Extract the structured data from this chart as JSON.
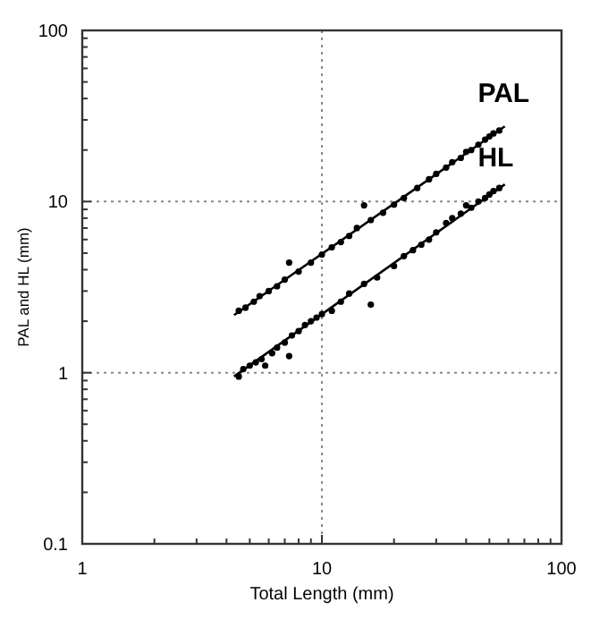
{
  "chart_data": {
    "type": "scatter",
    "xlabel": "Total Length (mm)",
    "ylabel": "PAL and HL (mm)",
    "log": "xy",
    "grid": true,
    "marker": "circle",
    "xlim": [
      1,
      100
    ],
    "ylim": [
      0.1,
      100
    ],
    "xticks": [
      1,
      {
        "value": 2,
        "label": null
      },
      {
        "value": 3,
        "label": null
      },
      {
        "value": 4,
        "label": null
      },
      {
        "value": 5,
        "label": null
      },
      {
        "value": 6,
        "label": null
      },
      {
        "value": 7,
        "label": null
      },
      {
        "value": 8,
        "label": null
      },
      {
        "value": 9,
        "label": null
      },
      10,
      {
        "value": 20,
        "label": null
      },
      {
        "value": 30,
        "label": null
      },
      {
        "value": 40,
        "label": null
      },
      {
        "value": 50,
        "label": null
      },
      {
        "value": 60,
        "label": null
      },
      {
        "value": 70,
        "label": null
      },
      {
        "value": 80,
        "label": null
      },
      {
        "value": 90,
        "label": null
      },
      100
    ],
    "yticks": [
      0.1,
      {
        "value": 0.2,
        "label": null
      },
      {
        "value": 0.3,
        "label": null
      },
      {
        "value": 0.4,
        "label": null
      },
      {
        "value": 0.5,
        "label": null
      },
      {
        "value": 0.6,
        "label": null
      },
      {
        "value": 0.7,
        "label": null
      },
      {
        "value": 0.8,
        "label": null
      },
      {
        "value": 0.9,
        "label": null
      },
      1,
      {
        "value": 2,
        "label": null
      },
      {
        "value": 3,
        "label": null
      },
      {
        "value": 4,
        "label": null
      },
      {
        "value": 5,
        "label": null
      },
      {
        "value": 6,
        "label": null
      },
      {
        "value": 7,
        "label": null
      },
      {
        "value": 8,
        "label": null
      },
      {
        "value": 9,
        "label": null
      },
      10,
      {
        "value": 20,
        "label": null
      },
      {
        "value": 30,
        "label": null
      },
      {
        "value": 40,
        "label": null
      },
      {
        "value": 50,
        "label": null
      },
      {
        "value": 60,
        "label": null
      },
      {
        "value": 70,
        "label": null
      },
      {
        "value": 80,
        "label": null
      },
      {
        "value": 90,
        "label": null
      },
      100
    ],
    "series": [
      {
        "name": "PAL",
        "color": "#000000",
        "x": [
          4.5,
          4.8,
          5.2,
          5.5,
          6,
          6.5,
          7,
          7.3,
          8,
          9,
          10,
          11,
          12,
          13,
          14,
          15,
          16,
          18,
          20,
          22,
          25,
          28,
          30,
          33,
          35,
          38,
          40,
          42,
          45,
          48,
          50,
          52,
          55
        ],
        "values": [
          2.3,
          2.4,
          2.6,
          2.8,
          3.0,
          3.2,
          3.5,
          4.4,
          3.9,
          4.4,
          4.9,
          5.4,
          5.8,
          6.3,
          7.0,
          9.5,
          7.8,
          8.6,
          9.6,
          10.5,
          12,
          13.5,
          14.5,
          15.8,
          17,
          18,
          19.5,
          20,
          21.5,
          23,
          24,
          25,
          26
        ]
      },
      {
        "name": "HL",
        "color": "#000000",
        "x": [
          4.5,
          4.7,
          5,
          5.3,
          5.6,
          5.8,
          6.2,
          6.5,
          7,
          7.3,
          7.5,
          8,
          8.5,
          9,
          9.5,
          10,
          11,
          12,
          13,
          15,
          16,
          17,
          20,
          22,
          24,
          26,
          28,
          30,
          33,
          35,
          38,
          40,
          42,
          45,
          48,
          50,
          52,
          55
        ],
        "values": [
          0.95,
          1.05,
          1.1,
          1.15,
          1.2,
          1.1,
          1.3,
          1.4,
          1.5,
          1.25,
          1.65,
          1.75,
          1.9,
          2.0,
          2.1,
          2.2,
          2.3,
          2.6,
          2.9,
          3.3,
          2.5,
          3.6,
          4.2,
          4.8,
          5.2,
          5.6,
          6.0,
          6.6,
          7.5,
          8.0,
          8.5,
          9.5,
          9.2,
          10,
          10.5,
          11,
          11.5,
          12
        ]
      },
      {
        "type": "line",
        "marker": "none",
        "color": "#000000",
        "x": [
          4.3,
          58
        ],
        "values": [
          2.17,
          27.5
        ]
      },
      {
        "type": "line",
        "marker": "none",
        "color": "#000000",
        "x": [
          4.3,
          58
        ],
        "values": [
          0.95,
          12.6
        ]
      }
    ]
  }
}
